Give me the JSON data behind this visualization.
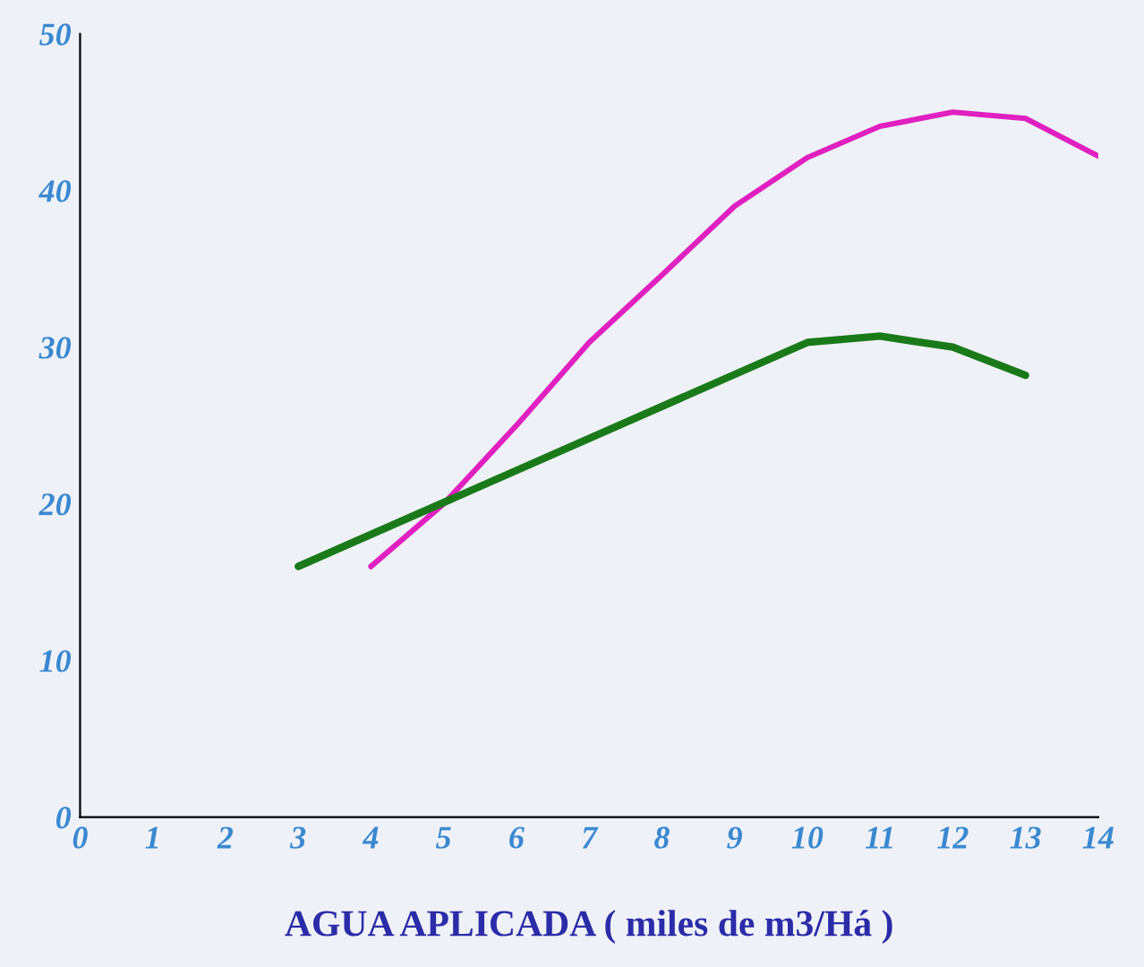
{
  "chart_data": {
    "type": "line",
    "xlabel": "AGUA APLICADA ( miles de m3/Há )",
    "xlim": [
      0,
      14
    ],
    "xticks": [
      0,
      1,
      2,
      3,
      4,
      5,
      6,
      7,
      8,
      9,
      10,
      11,
      12,
      13,
      14
    ],
    "ylim": [
      0,
      50
    ],
    "yticks": [
      0,
      10,
      20,
      30,
      40,
      50
    ],
    "grid": false,
    "marker": "none",
    "line_style": "solid",
    "series": [
      {
        "color": "#e020c0",
        "x": [
          4,
          5,
          6,
          7,
          8,
          9,
          10,
          11,
          12,
          13,
          14
        ],
        "values": [
          16,
          20,
          25,
          30.3,
          34.6,
          39,
          42.1,
          44.1,
          45,
          44.6,
          42.2
        ]
      },
      {
        "color": "#1a7a1a",
        "x": [
          3,
          10,
          11,
          12,
          13
        ],
        "values": [
          16,
          30.3,
          30.7,
          30,
          28.2
        ]
      }
    ]
  }
}
